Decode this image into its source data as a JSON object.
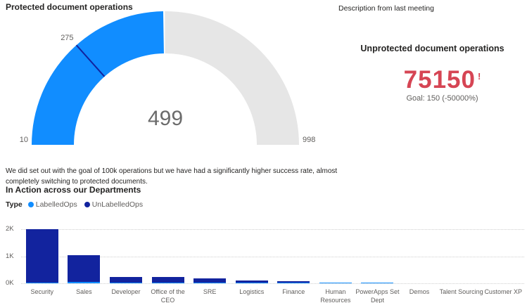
{
  "description": {
    "text": "Description from last meeting"
  },
  "narrative": {
    "text": "We did set out with the goal of 100k operations but we have had a significantly higher success rate, almost completely switching to protected documents."
  },
  "colors": {
    "labelled_blue": "#118DFF",
    "unlabelled_navy": "#12239E",
    "gauge_rest_gray": "#E6E6E6",
    "kpi_bad_red": "#D64554",
    "text_dark": "#252423",
    "text_gray": "#605E5C"
  },
  "chart_data": [
    {
      "type": "gauge",
      "title": "Protected document operations",
      "min": 10,
      "max": 998,
      "value": 499,
      "target": 275,
      "colors": {
        "fill": "#118DFF",
        "rest": "#E6E6E6",
        "target": "#12239E"
      }
    },
    {
      "type": "kpi",
      "title": "Unprotected document operations",
      "value": "75150",
      "indicator": "!",
      "goal_text": "Goal: 150 (-50000%)",
      "status": "bad",
      "color": "#D64554"
    },
    {
      "type": "bar",
      "stacked": true,
      "title": "In Action across our Departments",
      "legend_title": "Type",
      "legend_position": "top-left",
      "grid": "dotted-horizontal",
      "categories": [
        "Security",
        "Sales",
        "Developer",
        "Office of the CEO",
        "SRE",
        "Logistics",
        "Finance",
        "Human Resources",
        "PowerApps Set Dept",
        "Demos",
        "Talent Sourcing",
        "Customer XP"
      ],
      "series": [
        {
          "name": "LabelledOps",
          "color": "#118DFF",
          "values": [
            30,
            40,
            10,
            10,
            20,
            5,
            5,
            25,
            25,
            0,
            0,
            0
          ]
        },
        {
          "name": "UnLabelledOps",
          "color": "#12239E",
          "values": [
            1970,
            1010,
            215,
            195,
            150,
            65,
            60,
            0,
            0,
            0,
            0,
            0
          ]
        }
      ],
      "y_ticks": [
        "0K",
        "1K",
        "2K"
      ],
      "ylim": [
        0,
        2000
      ]
    }
  ]
}
